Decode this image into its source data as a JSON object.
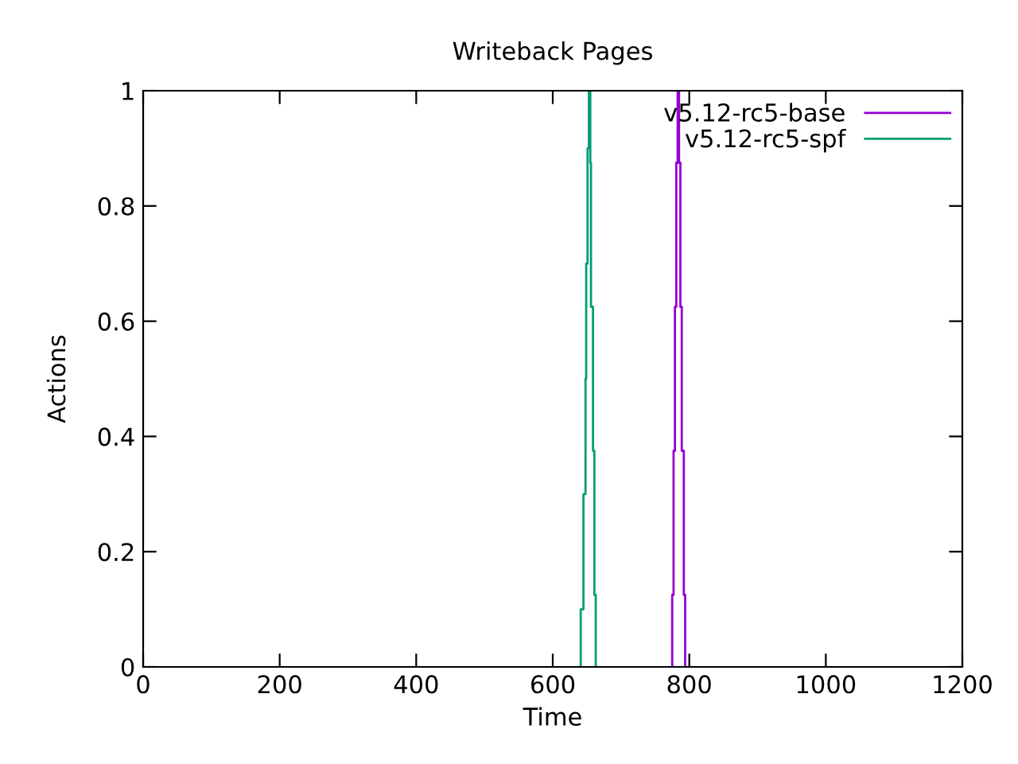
{
  "chart_data": {
    "type": "line",
    "title": "Writeback Pages",
    "xlabel": "Time",
    "ylabel": "Actions",
    "xlim": [
      0,
      1200
    ],
    "ylim": [
      0,
      1
    ],
    "xticks": [
      0,
      200,
      400,
      600,
      800,
      1000,
      1200
    ],
    "yticks": [
      0,
      0.2,
      0.4,
      0.6,
      0.8,
      1
    ],
    "grid": false,
    "legend": "top right",
    "marker": "none",
    "line_style": "solid",
    "series": [
      {
        "name": "v5.12-rc5-base",
        "color": "#9400d3",
        "x": [
          775,
          775,
          777,
          777,
          779,
          779,
          781,
          781,
          783,
          783,
          785,
          785,
          787,
          787,
          789,
          789,
          792,
          792,
          794,
          794
        ],
        "values": [
          0,
          0.125,
          0.125,
          0.375,
          0.375,
          0.625,
          0.625,
          0.875,
          0.875,
          1,
          1,
          0.875,
          0.875,
          0.625,
          0.625,
          0.375,
          0.375,
          0.125,
          0.125,
          0
        ]
      },
      {
        "name": "v5.12-rc5-spf",
        "color": "#009e73",
        "x": [
          641,
          641,
          645,
          645,
          648,
          648,
          649,
          649,
          651,
          651,
          653,
          653,
          655,
          655,
          656,
          656,
          659,
          659,
          661,
          661,
          663,
          663
        ],
        "values": [
          0,
          0.1,
          0.1,
          0.3,
          0.3,
          0.5,
          0.5,
          0.7,
          0.7,
          0.9,
          0.9,
          1,
          1,
          0.875,
          0.875,
          0.625,
          0.625,
          0.375,
          0.375,
          0.125,
          0.125,
          0
        ]
      }
    ]
  }
}
